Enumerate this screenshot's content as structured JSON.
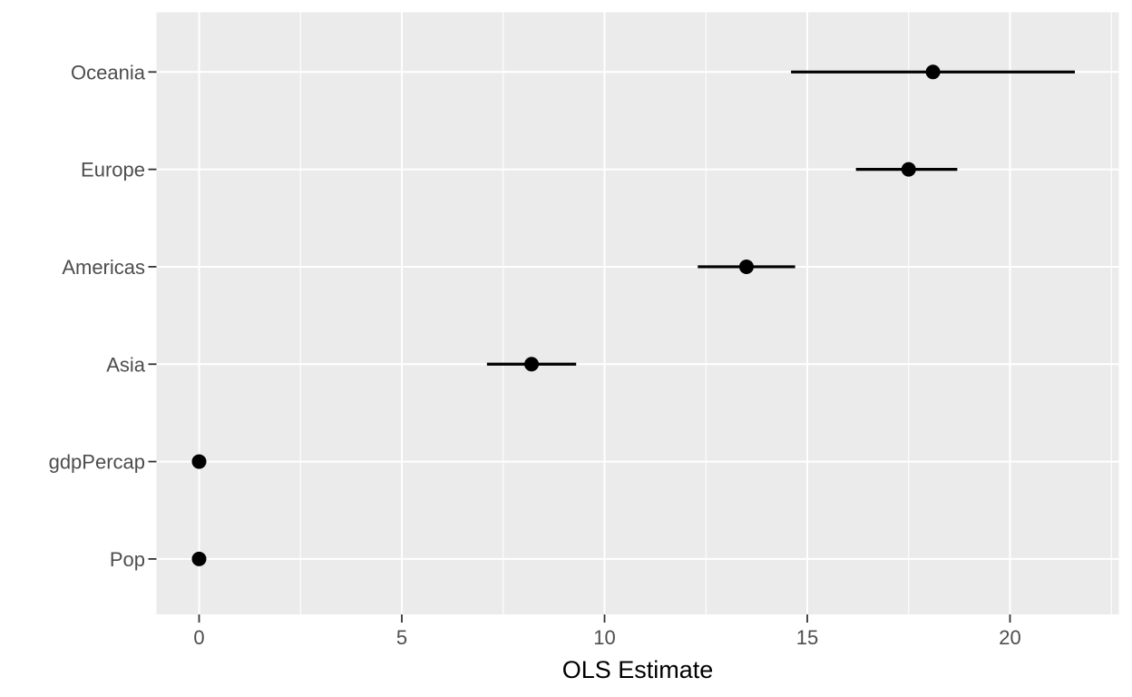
{
  "chart_data": {
    "type": "scatter",
    "subtype": "dot-whisker-coefficient-plot",
    "title": "",
    "xlabel": "OLS Estimate",
    "ylabel": "",
    "legend_position": "none",
    "grid": "on",
    "categories": [
      "Oceania",
      "Europe",
      "Americas",
      "Asia",
      "gdpPercap",
      "Pop"
    ],
    "series": [
      {
        "term": "Oceania",
        "estimate": 18.1,
        "ci_low": 14.6,
        "ci_high": 21.6
      },
      {
        "term": "Europe",
        "estimate": 17.5,
        "ci_low": 16.2,
        "ci_high": 18.7
      },
      {
        "term": "Americas",
        "estimate": 13.5,
        "ci_low": 12.3,
        "ci_high": 14.7
      },
      {
        "term": "Asia",
        "estimate": 8.2,
        "ci_low": 7.1,
        "ci_high": 9.3
      },
      {
        "term": "gdpPercap",
        "estimate": 0,
        "ci_low": 0,
        "ci_high": 0
      },
      {
        "term": "Pop",
        "estimate": 0,
        "ci_low": 0,
        "ci_high": 0
      }
    ],
    "x_axis": {
      "tick_labels": [
        "0",
        "5",
        "10",
        "15",
        "20"
      ],
      "ticks": [
        0,
        5,
        10,
        15,
        20
      ],
      "minor_ticks": [
        2.5,
        7.5,
        12.5,
        17.5,
        22.5
      ],
      "range": [
        -1.05,
        22.7
      ]
    },
    "colors": {
      "page_background": "#FFFFFF",
      "panel_background": "#EBEBEB",
      "grid_line": "#FFFFFF",
      "point": "#000000",
      "error_bar": "#000000",
      "axis_text": "#4D4D4D",
      "axis_ticks": "#333333",
      "axis_title": "#000000"
    }
  }
}
